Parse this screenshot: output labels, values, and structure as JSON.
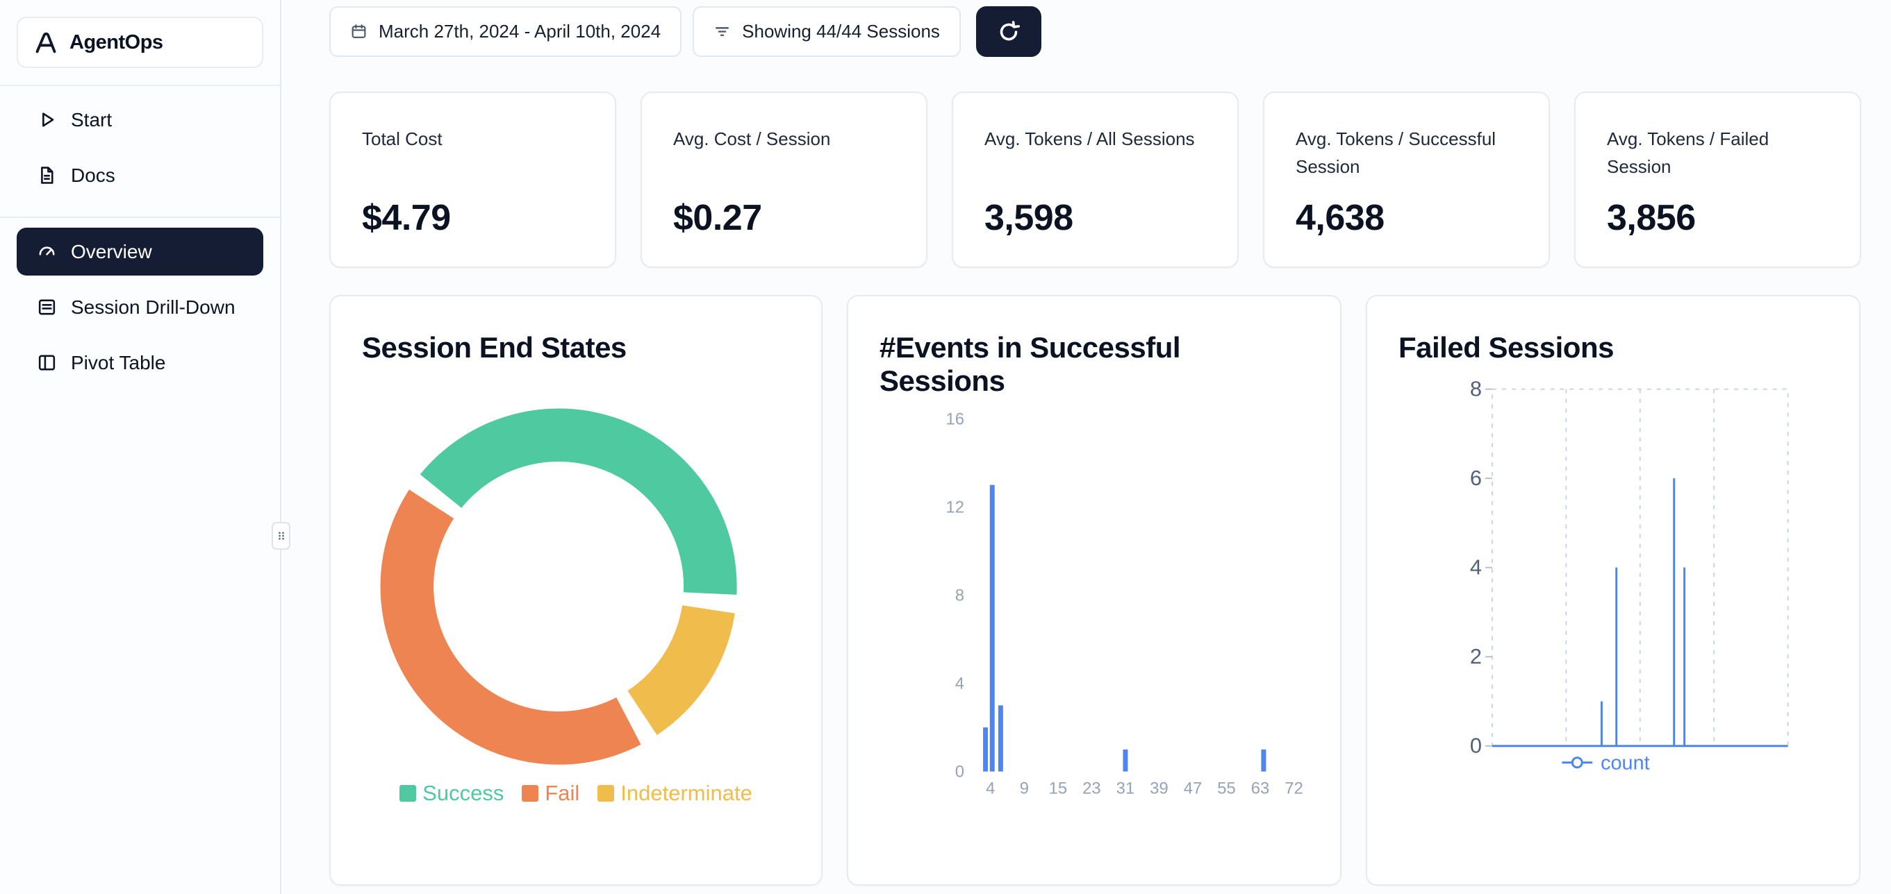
{
  "app": {
    "name": "AgentOps"
  },
  "theme": {
    "accent_navy": "#141D33",
    "card_border": "#E2E8F0",
    "background": "#FBFCFD",
    "success_green": "#4EC9A0",
    "fail_orange": "#EE8451",
    "indeterminate_yellow": "#F0BC4B",
    "chart_blue": "#4D86F0"
  },
  "sidebar": {
    "logo_text": "AgentOps",
    "sections": [
      {
        "items": [
          {
            "label": "Start"
          },
          {
            "label": "Docs"
          }
        ]
      },
      {
        "items": [
          {
            "label": "Overview",
            "active": true
          },
          {
            "label": "Session Drill-Down"
          },
          {
            "label": "Pivot Table"
          }
        ]
      }
    ]
  },
  "toolbar": {
    "date_range": "March 27th, 2024 - April 10th, 2024",
    "sessions_filter": "Showing 44/44 Sessions"
  },
  "stats": [
    {
      "label": "Total Cost",
      "value": "$4.79"
    },
    {
      "label": "Avg. Cost / Session",
      "value": "$0.27"
    },
    {
      "label": "Avg. Tokens / All Sessions",
      "value": "3,598"
    },
    {
      "label": "Avg. Tokens / Successful Session",
      "value": "4,638"
    },
    {
      "label": "Avg. Tokens / Failed Session",
      "value": "3,856"
    }
  ],
  "chart_data": [
    {
      "type": "pie",
      "variant": "donut",
      "title": "Session End States",
      "segments": [
        {
          "label": "Success",
          "percent": 42,
          "color": "#4EC9A0"
        },
        {
          "label": "Fail",
          "percent": 44,
          "color": "#EE8451"
        },
        {
          "label": "Indeterminate",
          "percent": 14,
          "color": "#F0BC4B"
        }
      ],
      "draw_order": [
        0,
        2,
        1
      ],
      "start_angle": -51,
      "gap_degrees": 6,
      "legend_position": "bottom"
    },
    {
      "type": "bar",
      "title": "#Events in Successful Sessions",
      "x_ticks": [
        "4",
        "9",
        "15",
        "23",
        "31",
        "39",
        "47",
        "55",
        "63",
        "72"
      ],
      "y_ticks": [
        0,
        4,
        8,
        12,
        16
      ],
      "ylim": [
        0,
        16
      ],
      "color": "#4D86F0",
      "bars": [
        {
          "pos": -0.15,
          "count": 2
        },
        {
          "pos": 0.05,
          "count": 13
        },
        {
          "pos": 0.3,
          "count": 3
        },
        {
          "pos": 4.0,
          "count": 1
        },
        {
          "pos": 8.1,
          "count": 1
        }
      ]
    },
    {
      "type": "line",
      "title": "Failed Sessions",
      "y_ticks": [
        0,
        2,
        4,
        6,
        8
      ],
      "ylim": [
        0,
        8
      ],
      "grid": "dashed",
      "legend": "count",
      "series": [
        {
          "name": "count",
          "color": "#4D86F0",
          "spikes": [
            {
              "pos": 0.37,
              "count": 1
            },
            {
              "pos": 0.42,
              "count": 4
            },
            {
              "pos": 0.615,
              "count": 6
            },
            {
              "pos": 0.65,
              "count": 4
            }
          ]
        }
      ]
    }
  ]
}
